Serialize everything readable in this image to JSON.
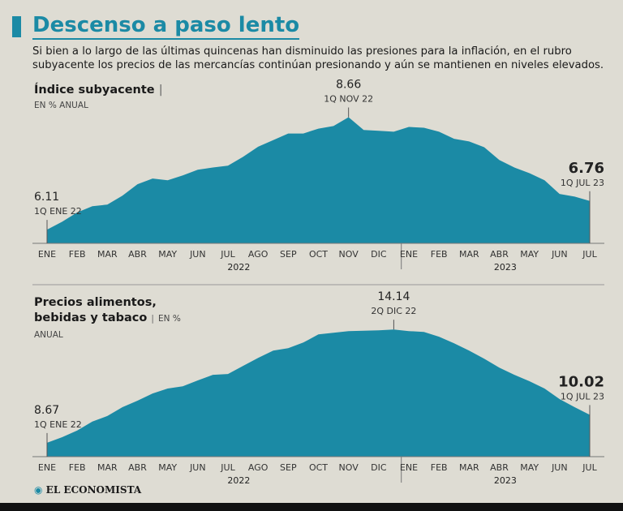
{
  "title": "Descenso a paso lento",
  "subtitle": "Si bien a lo largo de las últimas quincenas han disminuido las presiones para la inflación, en el rubro subyacente los precios de las mercancías continúan presionando y aún se mantienen en niveles elevados.",
  "source": "EL ECONOMISTA",
  "chart_data": [
    {
      "type": "area",
      "title": "Índice subyacente",
      "unit": "EN % ANUAL",
      "color": "#1b8aa5",
      "categories": [
        "ENE",
        null,
        "FEB",
        null,
        "MAR",
        null,
        "ABR",
        null,
        "MAY",
        null,
        "JUN",
        null,
        "JUL",
        null,
        "AGO",
        null,
        "SEP",
        null,
        "OCT",
        null,
        "NOV",
        null,
        "DIC",
        null,
        "ENE",
        null,
        "FEB",
        null,
        "MAR",
        null,
        "ABR",
        null,
        "MAY",
        null,
        "JUN",
        null,
        "JUL"
      ],
      "year_labels": [
        "2022",
        "2023"
      ],
      "values": [
        6.11,
        6.29,
        6.5,
        6.64,
        6.68,
        6.88,
        7.14,
        7.27,
        7.23,
        7.34,
        7.47,
        7.52,
        7.56,
        7.76,
        7.99,
        8.14,
        8.29,
        8.29,
        8.4,
        8.46,
        8.66,
        8.37,
        8.35,
        8.33,
        8.44,
        8.42,
        8.33,
        8.17,
        8.11,
        7.98,
        7.69,
        7.52,
        7.39,
        7.23,
        6.92,
        6.86,
        6.76
      ],
      "point_labels": [
        "1Q ENE 22",
        null,
        null,
        null,
        null,
        null,
        null,
        null,
        null,
        null,
        null,
        null,
        null,
        null,
        null,
        null,
        null,
        null,
        null,
        null,
        "1Q NOV 22",
        null,
        null,
        null,
        null,
        null,
        null,
        null,
        null,
        null,
        null,
        null,
        null,
        null,
        null,
        null,
        "1Q JUL 23"
      ],
      "ylim": [
        5.8,
        9.0
      ]
    },
    {
      "type": "area",
      "title": "Precios alimentos, bebidas y tabaco",
      "unit": "EN % ANUAL",
      "color": "#1b8aa5",
      "categories": [
        "ENE",
        null,
        "FEB",
        null,
        "MAR",
        null,
        "ABR",
        null,
        "MAY",
        null,
        "JUN",
        null,
        "JUL",
        null,
        "AGO",
        null,
        "SEP",
        null,
        "OCT",
        null,
        "NOV",
        null,
        "DIC",
        null,
        "ENE",
        null,
        "FEB",
        null,
        "MAR",
        null,
        "ABR",
        null,
        "MAY",
        null,
        "JUN",
        null,
        "JUL"
      ],
      "year_labels": [
        "2022",
        "2023"
      ],
      "values": [
        8.67,
        8.94,
        9.26,
        9.69,
        9.96,
        10.39,
        10.7,
        11.05,
        11.29,
        11.4,
        11.68,
        11.95,
        11.99,
        12.38,
        12.77,
        13.12,
        13.24,
        13.51,
        13.9,
        13.98,
        14.06,
        14.08,
        14.1,
        14.14,
        14.06,
        14.02,
        13.79,
        13.47,
        13.12,
        12.73,
        12.3,
        11.95,
        11.64,
        11.29,
        10.78,
        10.39,
        10.02
      ],
      "point_labels": [
        "1Q ENE 22",
        null,
        null,
        null,
        null,
        null,
        null,
        null,
        null,
        null,
        null,
        null,
        null,
        null,
        null,
        null,
        null,
        null,
        null,
        null,
        null,
        null,
        null,
        "2Q DIC 22",
        null,
        null,
        null,
        null,
        null,
        null,
        null,
        null,
        null,
        null,
        null,
        null,
        "1Q JUL 23"
      ],
      "ylim": [
        8.0,
        14.5
      ]
    }
  ]
}
